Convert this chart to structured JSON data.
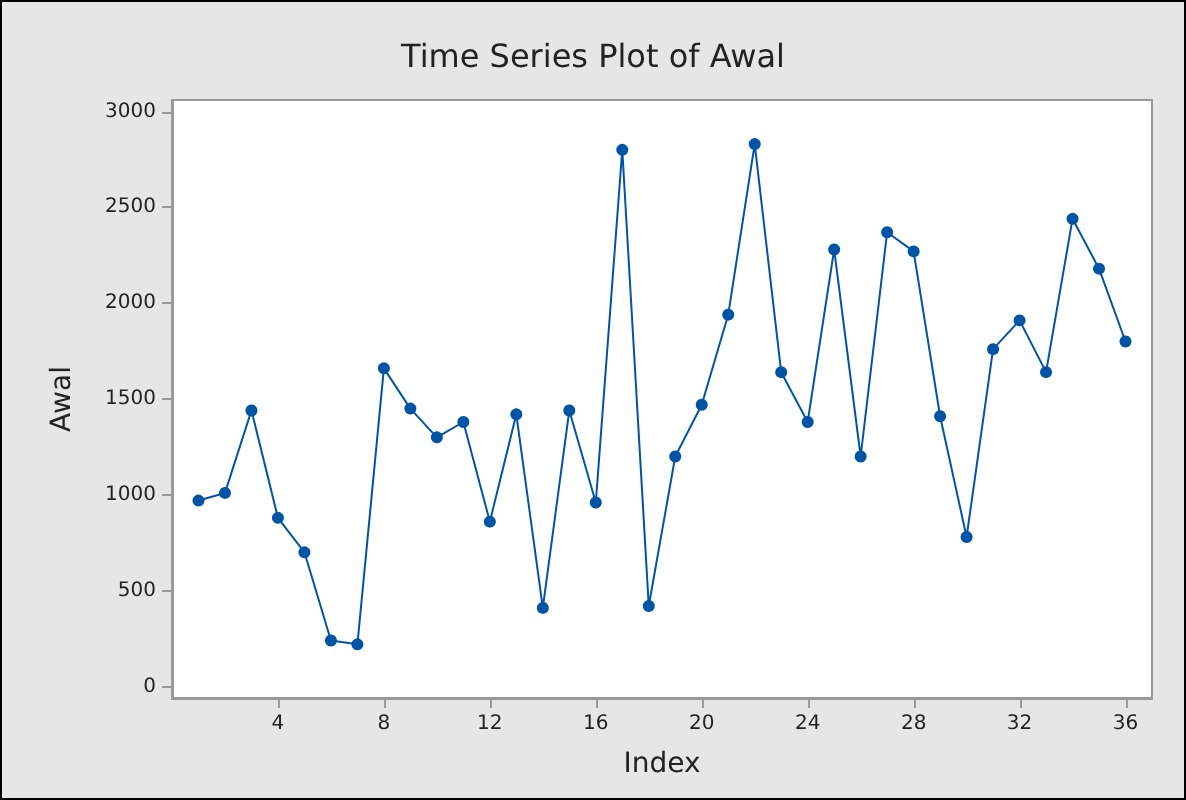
{
  "chart_data": {
    "type": "line",
    "title": "Time Series Plot of Awal",
    "xlabel": "Index",
    "ylabel": "Awal",
    "x": [
      1,
      2,
      3,
      4,
      5,
      6,
      7,
      8,
      9,
      10,
      11,
      12,
      13,
      14,
      15,
      16,
      17,
      18,
      19,
      20,
      21,
      22,
      23,
      24,
      25,
      26,
      27,
      28,
      29,
      30,
      31,
      32,
      33,
      34,
      35,
      36
    ],
    "series": [
      {
        "color": "#0054a6",
        "values": [
          970,
          1010,
          1440,
          880,
          700,
          240,
          220,
          1660,
          1450,
          1300,
          1380,
          860,
          1420,
          410,
          1440,
          960,
          2800,
          420,
          1200,
          1470,
          1940,
          2830,
          1640,
          1380,
          2280,
          1200,
          2370,
          2270,
          1410,
          780,
          1760,
          1910,
          1640,
          2440,
          2180,
          1800
        ]
      }
    ],
    "xlim": [
      0,
      37
    ],
    "xticks": [
      4,
      8,
      12,
      16,
      20,
      24,
      28,
      32,
      36
    ],
    "ylim": [
      -60,
      3060
    ],
    "yticks": [
      0,
      500,
      1000,
      1500,
      2000,
      2500,
      3000
    ],
    "grid": false,
    "marker": "circle",
    "line_style": "solid"
  }
}
